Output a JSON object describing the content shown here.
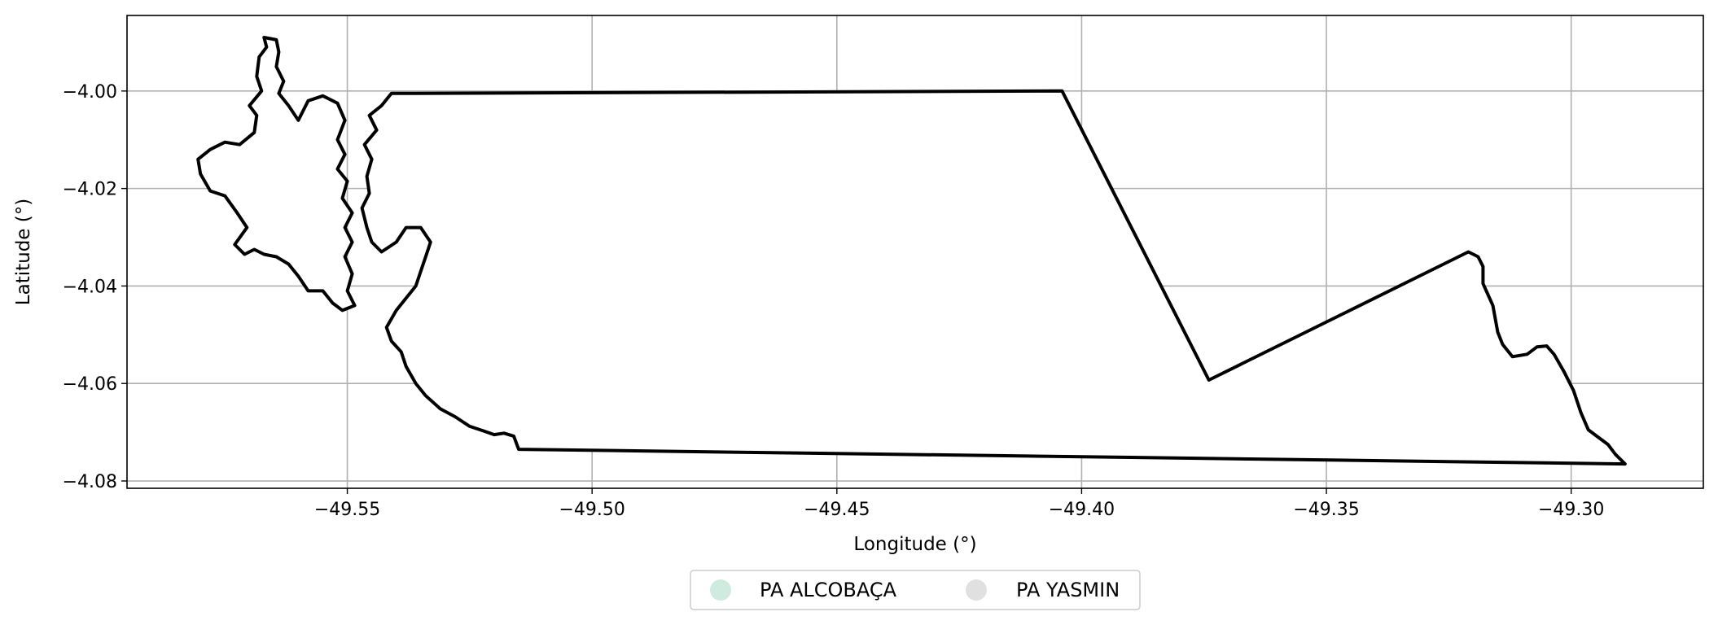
{
  "map": {
    "xlabel": "Longitude (°)",
    "ylabel": "Latitude (°)",
    "xlim": [
      -49.595,
      -49.273
    ],
    "ylim": [
      -4.0815,
      -3.9845
    ],
    "xticks": [
      -49.55,
      -49.5,
      -49.45,
      -49.4,
      -49.35,
      -49.3
    ],
    "xtick_labels": [
      "−49.55",
      "−49.50",
      "−49.45",
      "−49.40",
      "−49.35",
      "−49.30"
    ],
    "yticks": [
      -4.0,
      -4.02,
      -4.04,
      -4.06,
      -4.08
    ],
    "ytick_labels": [
      "−4.00",
      "−4.02",
      "−4.04",
      "−4.06",
      "−4.08"
    ],
    "grid": true,
    "outline_color": "#000000",
    "legend_position": "bottom-center",
    "legend": [
      {
        "label": "PA ALCOBAÇA",
        "color": "#cfeadf"
      },
      {
        "label": "PA YASMIN",
        "color": "#e0e0e0"
      }
    ],
    "polygons": [
      {
        "name": "PA YASMIN",
        "fill": "#ffffff",
        "coords": [
          [
            -49.541,
            -4.0005
          ],
          [
            -49.404,
            -4.0
          ],
          [
            -49.374,
            -4.0593
          ],
          [
            -49.321,
            -4.033
          ],
          [
            -49.319,
            -4.034
          ],
          [
            -49.318,
            -4.036
          ],
          [
            -49.318,
            -4.0395
          ],
          [
            -49.316,
            -4.044
          ],
          [
            -49.315,
            -4.0495
          ],
          [
            -49.314,
            -4.052
          ],
          [
            -49.312,
            -4.0545
          ],
          [
            -49.309,
            -4.054
          ],
          [
            -49.307,
            -4.0525
          ],
          [
            -49.305,
            -4.0523
          ],
          [
            -49.3035,
            -4.054
          ],
          [
            -49.3015,
            -4.0575
          ],
          [
            -49.2995,
            -4.0615
          ],
          [
            -49.298,
            -4.066
          ],
          [
            -49.2965,
            -4.0695
          ],
          [
            -49.2945,
            -4.071
          ],
          [
            -49.2925,
            -4.0725
          ],
          [
            -49.291,
            -4.0745
          ],
          [
            -49.289,
            -4.0765
          ],
          [
            -49.515,
            -4.0735
          ],
          [
            -49.516,
            -4.0708
          ],
          [
            -49.518,
            -4.0702
          ],
          [
            -49.52,
            -4.0705
          ],
          [
            -49.522,
            -4.0698
          ],
          [
            -49.525,
            -4.0688
          ],
          [
            -49.528,
            -4.0668
          ],
          [
            -49.531,
            -4.0652
          ],
          [
            -49.534,
            -4.0625
          ],
          [
            -49.536,
            -4.06
          ],
          [
            -49.538,
            -4.0565
          ],
          [
            -49.539,
            -4.0535
          ],
          [
            -49.541,
            -4.0513
          ],
          [
            -49.542,
            -4.0485
          ],
          [
            -49.54,
            -4.045
          ],
          [
            -49.538,
            -4.0425
          ],
          [
            -49.536,
            -4.04
          ],
          [
            -49.535,
            -4.037
          ],
          [
            -49.534,
            -4.034
          ],
          [
            -49.533,
            -4.031
          ],
          [
            -49.535,
            -4.028
          ],
          [
            -49.538,
            -4.028
          ],
          [
            -49.54,
            -4.031
          ],
          [
            -49.543,
            -4.033
          ],
          [
            -49.545,
            -4.031
          ],
          [
            -49.546,
            -4.028
          ],
          [
            -49.547,
            -4.024
          ],
          [
            -49.5455,
            -4.021
          ],
          [
            -49.546,
            -4.0175
          ],
          [
            -49.545,
            -4.014
          ],
          [
            -49.5465,
            -4.011
          ],
          [
            -49.544,
            -4.008
          ],
          [
            -49.5455,
            -4.005
          ],
          [
            -49.543,
            -4.003
          ],
          [
            -49.541,
            -4.0005
          ]
        ]
      },
      {
        "name": "PA ALCOBAÇA",
        "fill": "#ffffff",
        "coords": [
          [
            -49.567,
            -3.989
          ],
          [
            -49.5645,
            -3.9895
          ],
          [
            -49.564,
            -3.992
          ],
          [
            -49.5645,
            -3.995
          ],
          [
            -49.563,
            -3.998
          ],
          [
            -49.564,
            -4.0005
          ],
          [
            -49.562,
            -4.003
          ],
          [
            -49.56,
            -4.006
          ],
          [
            -49.558,
            -4.002
          ],
          [
            -49.555,
            -4.001
          ],
          [
            -49.552,
            -4.0025
          ],
          [
            -49.5505,
            -4.006
          ],
          [
            -49.552,
            -4.01
          ],
          [
            -49.5505,
            -4.013
          ],
          [
            -49.552,
            -4.016
          ],
          [
            -49.55,
            -4.0185
          ],
          [
            -49.551,
            -4.022
          ],
          [
            -49.549,
            -4.025
          ],
          [
            -49.5505,
            -4.028
          ],
          [
            -49.549,
            -4.031
          ],
          [
            -49.5505,
            -4.034
          ],
          [
            -49.549,
            -4.0375
          ],
          [
            -49.55,
            -4.041
          ],
          [
            -49.5485,
            -4.044
          ],
          [
            -49.551,
            -4.045
          ],
          [
            -49.553,
            -4.0435
          ],
          [
            -49.555,
            -4.041
          ],
          [
            -49.558,
            -4.041
          ],
          [
            -49.56,
            -4.038
          ],
          [
            -49.562,
            -4.0355
          ],
          [
            -49.5645,
            -4.034
          ],
          [
            -49.567,
            -4.0335
          ],
          [
            -49.569,
            -4.0325
          ],
          [
            -49.571,
            -4.0335
          ],
          [
            -49.573,
            -4.0315
          ],
          [
            -49.5705,
            -4.028
          ],
          [
            -49.5725,
            -4.025
          ],
          [
            -49.575,
            -4.0215
          ],
          [
            -49.578,
            -4.0205
          ],
          [
            -49.58,
            -4.017
          ],
          [
            -49.5805,
            -4.014
          ],
          [
            -49.578,
            -4.012
          ],
          [
            -49.575,
            -4.0105
          ],
          [
            -49.572,
            -4.011
          ],
          [
            -49.569,
            -4.0085
          ],
          [
            -49.5685,
            -4.005
          ],
          [
            -49.57,
            -4.003
          ],
          [
            -49.5675,
            -4.0
          ],
          [
            -49.5685,
            -3.997
          ],
          [
            -49.568,
            -3.993
          ],
          [
            -49.5665,
            -3.991
          ],
          [
            -49.567,
            -3.989
          ]
        ]
      }
    ]
  }
}
